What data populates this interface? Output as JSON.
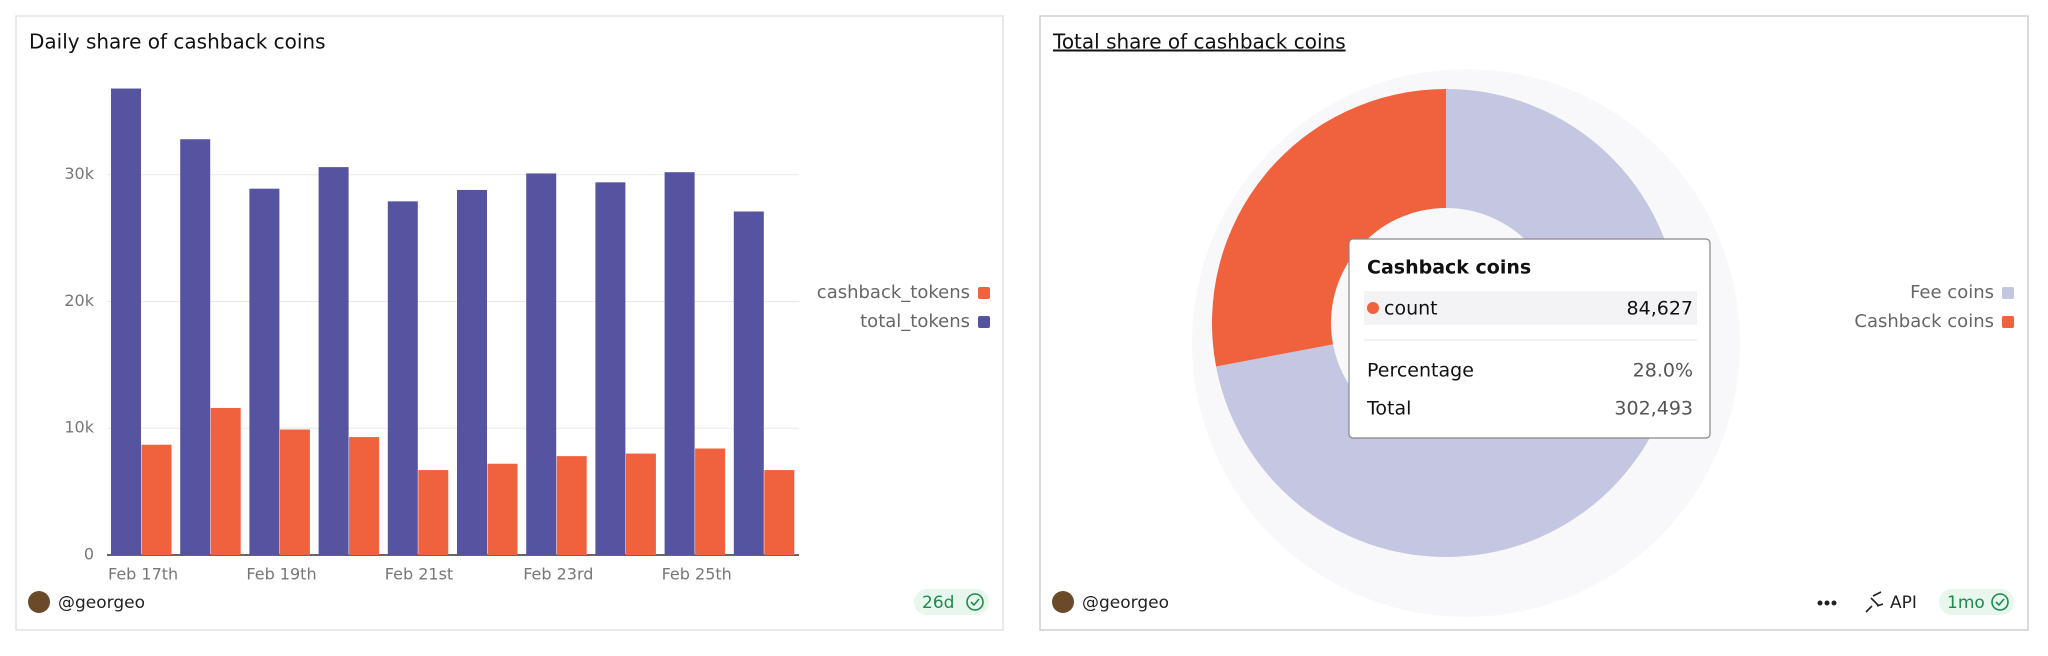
{
  "chart_data": [
    {
      "type": "bar",
      "title": "Daily share of cashback coins",
      "categories": [
        "Feb 17th",
        null,
        "Feb 19th",
        null,
        "Feb 21st",
        null,
        "Feb 23rd",
        null,
        "Feb 25th",
        null
      ],
      "series": [
        {
          "name": "cashback_tokens",
          "color": "#f0613e",
          "values": [
            8700,
            11600,
            9900,
            9300,
            6700,
            7200,
            7800,
            8000,
            8400,
            6700
          ]
        },
        {
          "name": "total_tokens",
          "color": "#5654a0",
          "values": [
            36800,
            32800,
            28900,
            30600,
            27900,
            28800,
            30100,
            29400,
            30200,
            27100
          ]
        }
      ],
      "ylim": [
        0,
        37000
      ],
      "yticks": [
        0,
        {
          "value": 10000,
          "label": "10k"
        },
        {
          "value": 20000,
          "label": "20k"
        },
        {
          "value": 30000,
          "label": "30k"
        }
      ],
      "grid": true,
      "legend": "right"
    },
    {
      "type": "pie",
      "title": "Total share of cashback coins",
      "categories": [
        "Fee coins",
        "Cashback coins"
      ],
      "values": [
        217866,
        84627
      ],
      "colors": [
        "#c5c6e1",
        "#f0613e"
      ],
      "legend": "right",
      "tooltip": {
        "title": "Cashback coins",
        "count_label": "count",
        "count": "84,627",
        "rows": [
          {
            "label": "Percentage",
            "value": "28.0%"
          },
          {
            "label": "Total",
            "value": "302,493"
          }
        ]
      }
    }
  ],
  "cards": [
    {
      "author": "@georgeo",
      "age": "26d"
    },
    {
      "author": "@georgeo",
      "api": "API",
      "age": "1mo"
    }
  ]
}
